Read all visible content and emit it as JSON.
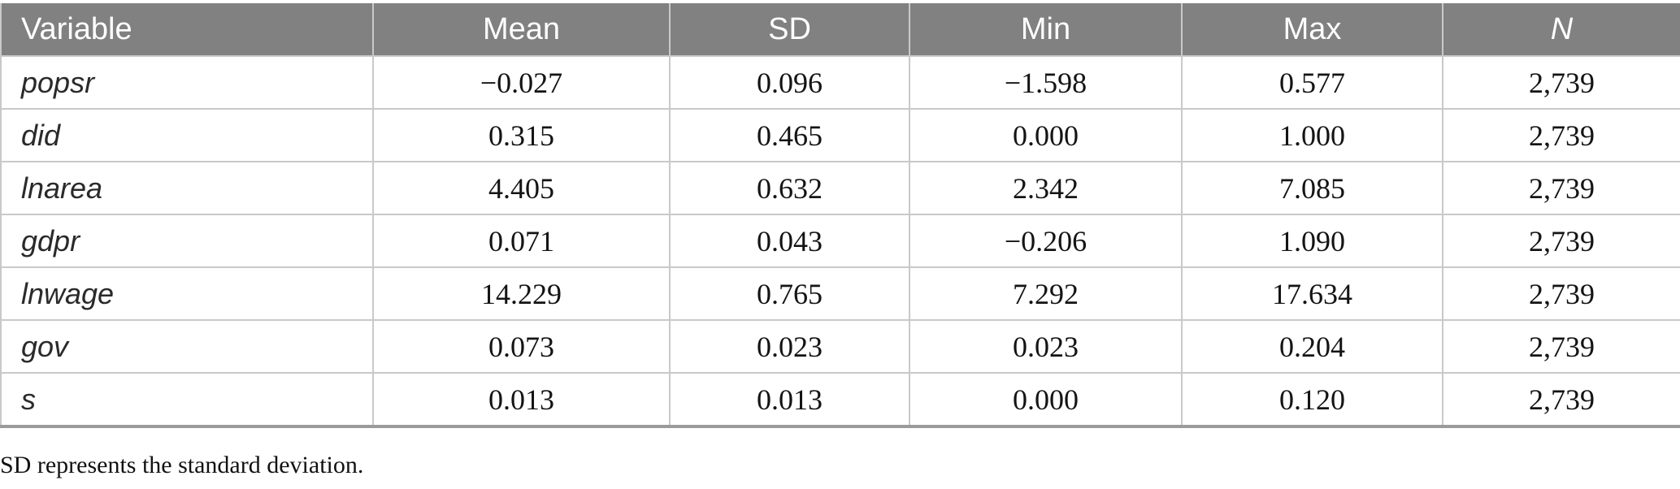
{
  "table": {
    "columns": [
      {
        "label": "Variable",
        "italic": false
      },
      {
        "label": "Mean",
        "italic": false
      },
      {
        "label": "SD",
        "italic": false
      },
      {
        "label": "Min",
        "italic": false
      },
      {
        "label": "Max",
        "italic": false
      },
      {
        "label": "N",
        "italic": true
      }
    ],
    "rows": [
      {
        "variable": "popsr",
        "values": [
          "−0.027",
          "0.096",
          "−1.598",
          "0.577",
          "2,739"
        ]
      },
      {
        "variable": "did",
        "values": [
          "0.315",
          "0.465",
          "0.000",
          "1.000",
          "2,739"
        ]
      },
      {
        "variable": "lnarea",
        "values": [
          "4.405",
          "0.632",
          "2.342",
          "7.085",
          "2,739"
        ]
      },
      {
        "variable": "gdpr",
        "values": [
          "0.071",
          "0.043",
          "−0.206",
          "1.090",
          "2,739"
        ]
      },
      {
        "variable": "lnwage",
        "values": [
          "14.229",
          "0.765",
          "7.292",
          "17.634",
          "2,739"
        ]
      },
      {
        "variable": "gov",
        "values": [
          "0.073",
          "0.023",
          "0.023",
          "0.204",
          "2,739"
        ]
      },
      {
        "variable": "s",
        "values": [
          "0.013",
          "0.013",
          "0.000",
          "0.120",
          "2,739"
        ]
      }
    ]
  },
  "footnote": "SD represents the standard deviation.",
  "colors": {
    "header_bg": "#818181",
    "header_text": "#ffffff",
    "grid_line": "#c9c9c9",
    "bottom_rule": "#9b9b9b",
    "body_text": "#141414"
  }
}
